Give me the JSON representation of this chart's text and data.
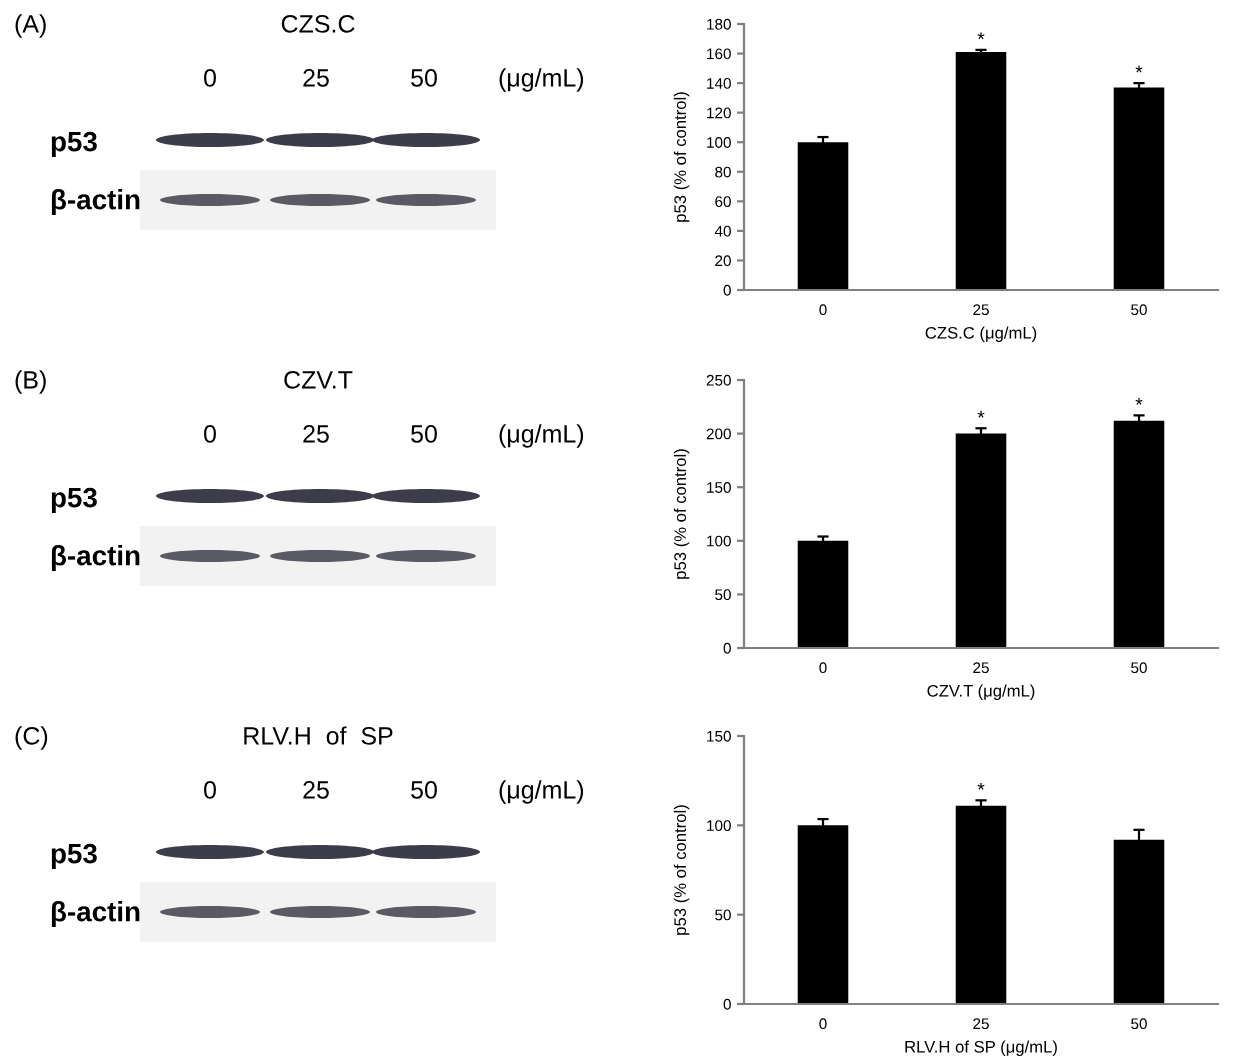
{
  "chart_data": [
    {
      "type": "bar",
      "categories": [
        "0",
        "25",
        "50"
      ],
      "values": [
        100,
        161,
        137
      ],
      "errors": [
        3.5,
        1.5,
        3
      ],
      "color": "#000000",
      "ylim": [
        0,
        180
      ],
      "yticks": [
        0,
        20,
        40,
        60,
        80,
        100,
        120,
        140,
        160,
        180
      ],
      "xlabel": "CZS.C (μg/mL)",
      "ylabel": "p53 (% of control)",
      "annotations": [
        "(A)",
        "CZS.C",
        "0",
        "25",
        "50",
        "(μg/mL)",
        "p53",
        "β-actin",
        {
          "text": "*",
          "x": "25",
          "y": 161
        },
        {
          "text": "*",
          "x": "50",
          "y": 137
        }
      ]
    },
    {
      "type": "bar",
      "categories": [
        "0",
        "25",
        "50"
      ],
      "values": [
        100,
        200,
        212
      ],
      "errors": [
        4,
        5,
        5
      ],
      "color": "#000000",
      "ylim": [
        0,
        250
      ],
      "yticks": [
        0,
        50,
        100,
        150,
        200,
        250
      ],
      "xlabel": "CZV.T (μg/mL)",
      "ylabel": "p53 (% of control)",
      "annotations": [
        "(B)",
        "CZV.T",
        "0",
        "25",
        "50",
        "(μg/mL)",
        "p53",
        "β-actin",
        {
          "text": "*",
          "x": "25",
          "y": 200
        },
        {
          "text": "*",
          "x": "50",
          "y": 212
        }
      ]
    },
    {
      "type": "bar",
      "categories": [
        "0",
        "25",
        "50"
      ],
      "values": [
        100,
        111,
        92
      ],
      "errors": [
        3.5,
        3,
        5.5
      ],
      "color": "#000000",
      "ylim": [
        0,
        150
      ],
      "yticks": [
        0,
        50,
        100,
        150
      ],
      "xlabel": "RLV.H of SP (μg/mL)",
      "ylabel": "p53 (% of control)",
      "annotations": [
        "(C)",
        "RLV.H  of  SP",
        "0",
        "25",
        "50",
        "(μg/mL)",
        "p53",
        "β-actin",
        {
          "text": "*",
          "x": "25",
          "y": 111
        }
      ]
    }
  ]
}
